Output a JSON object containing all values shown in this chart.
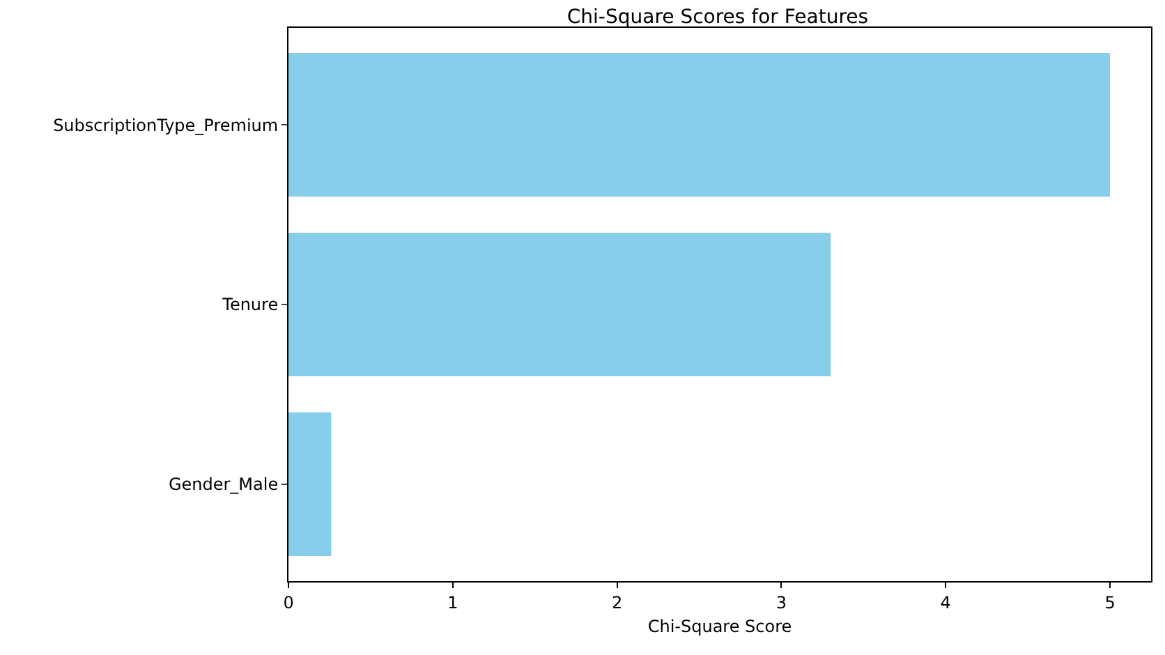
{
  "chart_data": {
    "type": "bar",
    "orientation": "horizontal",
    "title": "Chi-Square Scores for Features",
    "xlabel": "Chi-Square Score",
    "categories": [
      "SubscriptionType_Premium",
      "Tenure",
      "Gender_Male"
    ],
    "values": [
      5.0,
      3.3,
      0.26
    ],
    "color": "#87ceeb",
    "xlim": [
      0,
      5.25
    ],
    "xticks": [
      0,
      1,
      2,
      3,
      4,
      5
    ],
    "grid": false
  }
}
